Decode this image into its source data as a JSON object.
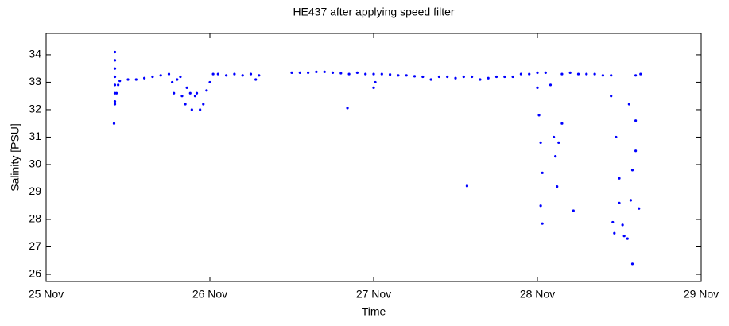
{
  "chart_data": {
    "type": "scatter",
    "title": "HE437 after applying speed filter",
    "xlabel": "Time",
    "ylabel": "Salinity [PSU]",
    "xlim": [
      0,
      4
    ],
    "xticks": [
      {
        "value": 0,
        "label": "25 Nov"
      },
      {
        "value": 1,
        "label": "26 Nov"
      },
      {
        "value": 2,
        "label": "27 Nov"
      },
      {
        "value": 3,
        "label": "28 Nov"
      },
      {
        "value": 4,
        "label": "29 Nov"
      }
    ],
    "ylim": [
      25.74,
      34.78
    ],
    "yticks": [
      26,
      27,
      28,
      29,
      30,
      31,
      32,
      33,
      34
    ],
    "grid": false,
    "series": [
      {
        "name": null,
        "color": "#0000ff",
        "x": [
          0.42,
          0.42,
          0.42,
          0.42,
          0.42,
          0.42,
          0.42,
          0.42,
          0.415,
          0.43,
          0.44,
          0.45,
          0.5,
          0.55,
          0.6,
          0.65,
          0.7,
          0.75,
          0.77,
          0.78,
          0.8,
          0.82,
          0.83,
          0.85,
          0.86,
          0.88,
          0.89,
          0.91,
          0.92,
          0.94,
          0.96,
          0.98,
          1.0,
          1.02,
          1.05,
          1.1,
          1.15,
          1.2,
          1.25,
          1.28,
          1.3,
          1.5,
          1.55,
          1.6,
          1.65,
          1.7,
          1.75,
          1.8,
          1.84,
          1.85,
          1.9,
          1.95,
          2.0,
          2.01,
          2.0,
          2.05,
          2.1,
          2.15,
          2.2,
          2.25,
          2.3,
          2.35,
          2.4,
          2.45,
          2.5,
          2.55,
          2.57,
          2.6,
          2.65,
          2.7,
          2.75,
          2.8,
          2.85,
          2.9,
          2.95,
          3.0,
          3.0,
          3.01,
          3.02,
          3.03,
          3.02,
          3.03,
          3.05,
          3.08,
          3.1,
          3.11,
          3.12,
          3.13,
          3.15,
          3.15,
          3.2,
          3.22,
          3.25,
          3.3,
          3.35,
          3.4,
          3.45,
          3.45,
          3.46,
          3.47,
          3.48,
          3.5,
          3.5,
          3.52,
          3.53,
          3.55,
          3.56,
          3.57,
          3.58,
          3.58,
          3.6,
          3.6,
          3.62,
          3.6,
          3.63
        ],
        "values": [
          34.1,
          33.8,
          33.5,
          33.2,
          32.9,
          32.6,
          32.3,
          32.2,
          31.5,
          32.6,
          32.9,
          33.05,
          33.1,
          33.1,
          33.15,
          33.2,
          33.25,
          33.3,
          33.0,
          32.6,
          33.1,
          33.2,
          32.5,
          32.2,
          32.8,
          32.6,
          32.0,
          32.5,
          32.6,
          32.0,
          32.2,
          32.7,
          33.0,
          33.3,
          33.3,
          33.25,
          33.3,
          33.25,
          33.3,
          33.1,
          33.25,
          33.35,
          33.35,
          33.35,
          33.38,
          33.38,
          33.35,
          33.33,
          32.06,
          33.3,
          33.35,
          33.3,
          33.3,
          33.0,
          32.8,
          33.3,
          33.28,
          33.25,
          33.25,
          33.22,
          33.2,
          33.1,
          33.2,
          33.2,
          33.15,
          33.2,
          29.22,
          33.2,
          33.1,
          33.15,
          33.2,
          33.2,
          33.2,
          33.3,
          33.3,
          33.35,
          32.8,
          31.8,
          30.8,
          29.7,
          28.5,
          27.85,
          33.35,
          32.9,
          31.0,
          30.3,
          29.2,
          30.8,
          31.5,
          33.3,
          33.35,
          28.32,
          33.3,
          33.3,
          33.3,
          33.25,
          33.25,
          32.5,
          27.9,
          27.5,
          31.0,
          29.5,
          28.6,
          27.8,
          27.4,
          27.3,
          32.2,
          28.7,
          29.8,
          26.38,
          31.6,
          30.5,
          28.4,
          33.25,
          33.3
        ]
      }
    ]
  }
}
